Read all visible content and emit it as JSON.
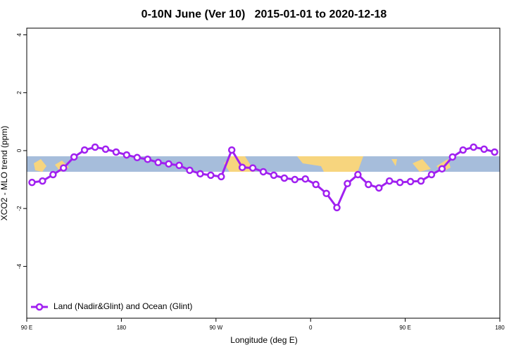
{
  "chart_data": {
    "type": "line",
    "title": "0-10N June (Ver 10)   2015-01-01 to 2020-12-18",
    "xlabel": "Longitude (deg E)",
    "ylabel": "XCO2 - MLO trend (ppm)",
    "x": [
      95,
      105,
      115,
      125,
      135,
      145,
      155,
      165,
      175,
      185,
      195,
      205,
      215,
      225,
      235,
      245,
      255,
      265,
      275,
      285,
      295,
      305,
      315,
      325,
      335,
      345,
      355,
      365,
      375,
      385,
      395,
      405,
      415,
      425,
      435,
      445,
      455,
      465,
      475,
      485,
      495,
      505,
      515,
      525,
      535
    ],
    "series": [
      {
        "name": "Land (Nadir&Glint) and Ocean (Glint)",
        "color": "#a020f0",
        "values": [
          -1.1,
          -1.05,
          -0.83,
          -0.6,
          -0.22,
          0.02,
          0.12,
          0.05,
          -0.05,
          -0.15,
          -0.24,
          -0.3,
          -0.41,
          -0.46,
          -0.51,
          -0.68,
          -0.8,
          -0.85,
          -0.9,
          0.02,
          -0.58,
          -0.6,
          -0.73,
          -0.85,
          -0.95,
          -1.0,
          -0.98,
          -1.17,
          -1.48,
          -1.97,
          -1.14,
          -0.83,
          -1.17,
          -1.29,
          -1.05,
          -1.1,
          -1.07,
          -1.05,
          -0.83,
          -0.63,
          -0.22,
          0.02,
          0.12,
          0.05,
          -0.05
        ]
      }
    ],
    "xlim": [
      90,
      540
    ],
    "xticks": [
      {
        "value": 90,
        "label": "90 E"
      },
      180,
      {
        "value": 270,
        "label": "90 W"
      },
      {
        "value": 360,
        "label": "0"
      },
      {
        "value": 450,
        "label": "90 E"
      },
      {
        "value": 540,
        "label": "180"
      }
    ],
    "ylim": [
      -5.79,
      4.23
    ],
    "yticks": [
      4,
      2,
      0,
      -2,
      -4
    ],
    "legend": "bottom-left"
  }
}
